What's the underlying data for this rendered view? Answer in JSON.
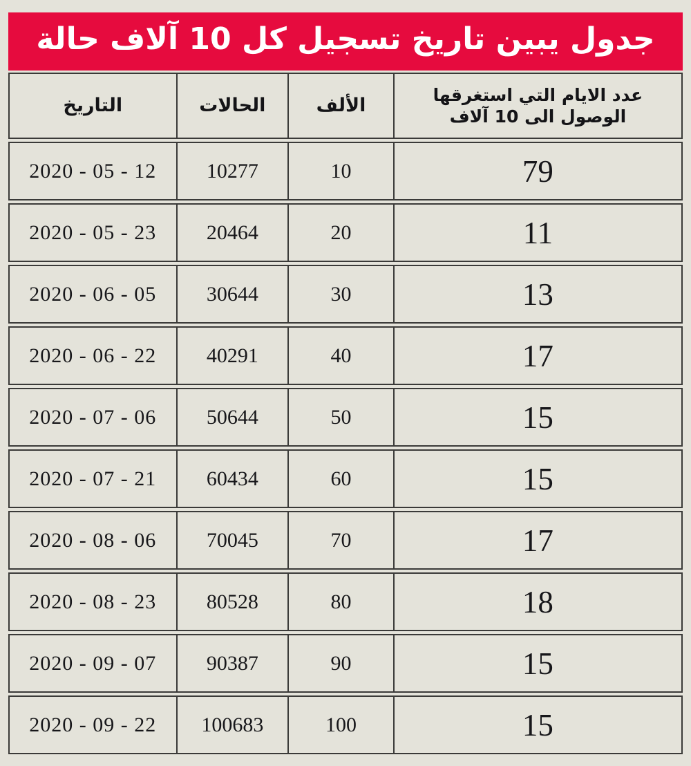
{
  "title": "جدول يبين تاريخ تسجيل كل 10 آلاف حالة",
  "colors": {
    "banner_background": "#e60b3e",
    "banner_text": "#ffffff",
    "page_background": "#e4e3da",
    "cell_background": "#e4e3da",
    "border": "#3a3a38",
    "cell_text": "#17171a"
  },
  "header": {
    "date": "التاريخ",
    "cases": "الحالات",
    "thousand": "الألف",
    "days_line1": "عدد الايام التي استغرقها",
    "days_line2": "الوصول الى 10 آلاف"
  },
  "table": {
    "rows": [
      {
        "date": "2020 - 05 - 12",
        "cases": "10277",
        "thousand": "10",
        "days": "79"
      },
      {
        "date": "2020 - 05 - 23",
        "cases": "20464",
        "thousand": "20",
        "days": "11"
      },
      {
        "date": "2020 - 06 - 05",
        "cases": "30644",
        "thousand": "30",
        "days": "13"
      },
      {
        "date": "2020 - 06 - 22",
        "cases": "40291",
        "thousand": "40",
        "days": "17"
      },
      {
        "date": "2020 - 07 - 06",
        "cases": "50644",
        "thousand": "50",
        "days": "15"
      },
      {
        "date": "2020 - 07 - 21",
        "cases": "60434",
        "thousand": "60",
        "days": "15"
      },
      {
        "date": "2020 - 08 - 06",
        "cases": "70045",
        "thousand": "70",
        "days": "17"
      },
      {
        "date": "2020 - 08 - 23",
        "cases": "80528",
        "thousand": "80",
        "days": "18"
      },
      {
        "date": "2020 - 09 - 07",
        "cases": "90387",
        "thousand": "90",
        "days": "15"
      },
      {
        "date": "2020 - 09 - 22",
        "cases": "100683",
        "thousand": "100",
        "days": "15"
      }
    ]
  },
  "chart_data": {
    "type": "table",
    "title": "جدول يبين تاريخ تسجيل كل 10 آلاف حالة",
    "columns": [
      "التاريخ",
      "الحالات",
      "الألف",
      "عدد الايام التي استغرقها الوصول الى 10 آلاف"
    ],
    "rows": [
      [
        "2020 - 05 - 12",
        10277,
        10,
        79
      ],
      [
        "2020 - 05 - 23",
        20464,
        20,
        11
      ],
      [
        "2020 - 06 - 05",
        30644,
        30,
        13
      ],
      [
        "2020 - 06 - 22",
        40291,
        40,
        17
      ],
      [
        "2020 - 07 - 06",
        50644,
        50,
        15
      ],
      [
        "2020 - 07 - 21",
        60434,
        60,
        15
      ],
      [
        "2020 - 08 - 06",
        70045,
        70,
        17
      ],
      [
        "2020 - 08 - 23",
        80528,
        80,
        18
      ],
      [
        "2020 - 09 - 07",
        90387,
        90,
        15
      ],
      [
        "2020 - 09 - 22",
        100683,
        100,
        15
      ]
    ]
  }
}
